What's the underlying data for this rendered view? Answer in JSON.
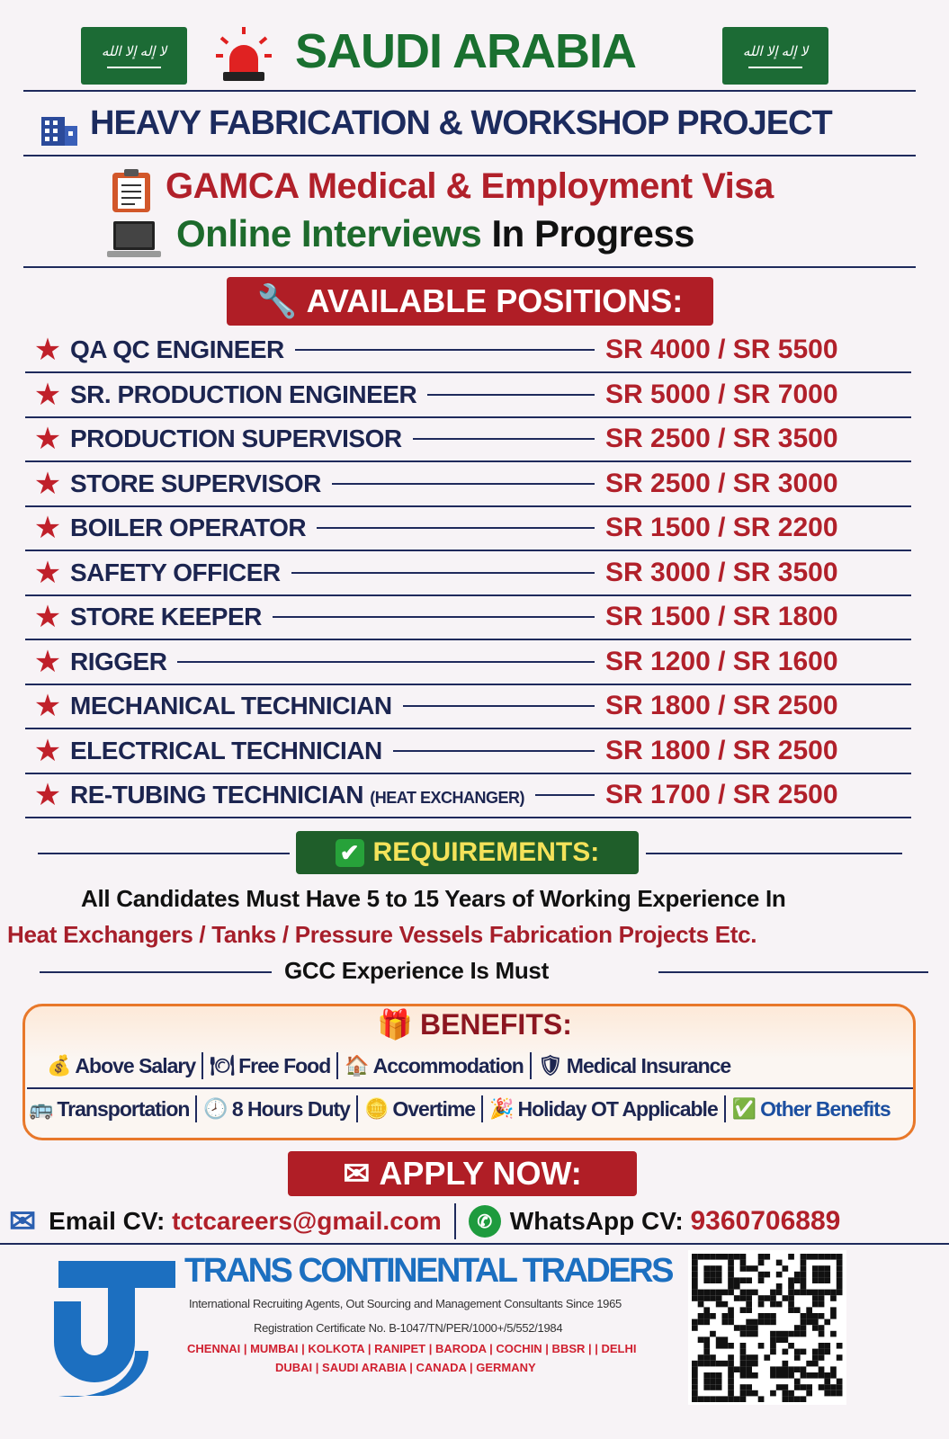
{
  "header": {
    "title": "SAUDI ARABIA",
    "flag_text": "لا إله إلا الله",
    "project": "HEAVY FABRICATION & WORKSHOP PROJECT",
    "visa": "GAMCA Medical & Employment Visa",
    "interviews_green": "Online Interviews",
    "interviews_black": "In Progress"
  },
  "positions": {
    "heading": "AVAILABLE POSITIONS:",
    "items": [
      {
        "title": "QA QC ENGINEER",
        "note": "",
        "salary": "SR 4000 / SR 5500"
      },
      {
        "title": "SR. PRODUCTION ENGINEER",
        "note": "",
        "salary": "SR 5000 / SR 7000"
      },
      {
        "title": "PRODUCTION SUPERVISOR",
        "note": "",
        "salary": "SR 2500 / SR 3500"
      },
      {
        "title": "STORE SUPERVISOR",
        "note": "",
        "salary": "SR 2500 / SR 3000"
      },
      {
        "title": "BOILER OPERATOR",
        "note": "",
        "salary": "SR 1500 / SR 2200"
      },
      {
        "title": "SAFETY OFFICER",
        "note": "",
        "salary": "SR 3000 / SR 3500"
      },
      {
        "title": "STORE KEEPER",
        "note": "",
        "salary": "SR 1500 / SR 1800"
      },
      {
        "title": "RIGGER",
        "note": "",
        "salary": "SR 1200 / SR 1600"
      },
      {
        "title": "MECHANICAL TECHNICIAN",
        "note": "",
        "salary": "SR 1800 / SR 2500"
      },
      {
        "title": "ELECTRICAL TECHNICIAN",
        "note": "",
        "salary": "SR 1800 / SR 2500"
      },
      {
        "title": "RE-TUBING TECHNICIAN",
        "note": "(HEAT EXCHANGER)",
        "salary": "SR 1700 / SR 2500"
      }
    ]
  },
  "requirements": {
    "heading": "REQUIREMENTS:",
    "line1": "All Candidates Must Have 5 to 15 Years of Working Experience In",
    "line2": "Heat Exchangers / Tanks / Pressure Vessels Fabrication Projects Etc.",
    "line3": "GCC Experience Is Must"
  },
  "benefits": {
    "heading": "BENEFITS:",
    "row1": [
      {
        "icon": "money-bag-icon",
        "glyph": "💰",
        "label": "Above Salary"
      },
      {
        "icon": "food-plate-icon",
        "glyph": "🍽",
        "label": "Free Food"
      },
      {
        "icon": "house-icon",
        "glyph": "🏠",
        "label": "Accommodation"
      },
      {
        "icon": "shield-medical-icon",
        "glyph": "🛡",
        "label": "Medical Insurance"
      }
    ],
    "row2": [
      {
        "icon": "bus-icon",
        "glyph": "🚌",
        "label": "Transportation"
      },
      {
        "icon": "clock-icon",
        "glyph": "🕗",
        "label": "8 Hours Duty"
      },
      {
        "icon": "coins-icon",
        "glyph": "🪙",
        "label": "Overtime"
      },
      {
        "icon": "party-popper-icon",
        "glyph": "🎉",
        "label": "Holiday OT Applicable"
      },
      {
        "icon": "check-icon",
        "glyph": "✅",
        "label": "Other Benefits"
      }
    ]
  },
  "apply": {
    "heading": "APPLY NOW:",
    "email_label": "Email CV:",
    "email": "tctcareers@gmail.com",
    "whatsapp_label": "WhatsApp CV:",
    "whatsapp": "9360706889"
  },
  "company": {
    "name": "TRANS CONTINENTAL TRADERS",
    "tagline": "International Recruiting Agents, Out Sourcing and Management  Consultants Since 1965",
    "registration": "Registration Certificate No. B-1047/TN/PER/1000+/5/552/1984",
    "cities1": "CHENNAI | MUMBAI | KOLKOTA | RANIPET | BARODA | COCHIN | BBSR | | DELHI",
    "cities2": "DUBAI | SAUDI ARABIA | CANADA | GERMANY"
  },
  "colors": {
    "navy": "#1c2550",
    "red": "#b1202a",
    "green": "#1d6a2c",
    "orange": "#e8782a",
    "blue": "#1c6fc0"
  }
}
